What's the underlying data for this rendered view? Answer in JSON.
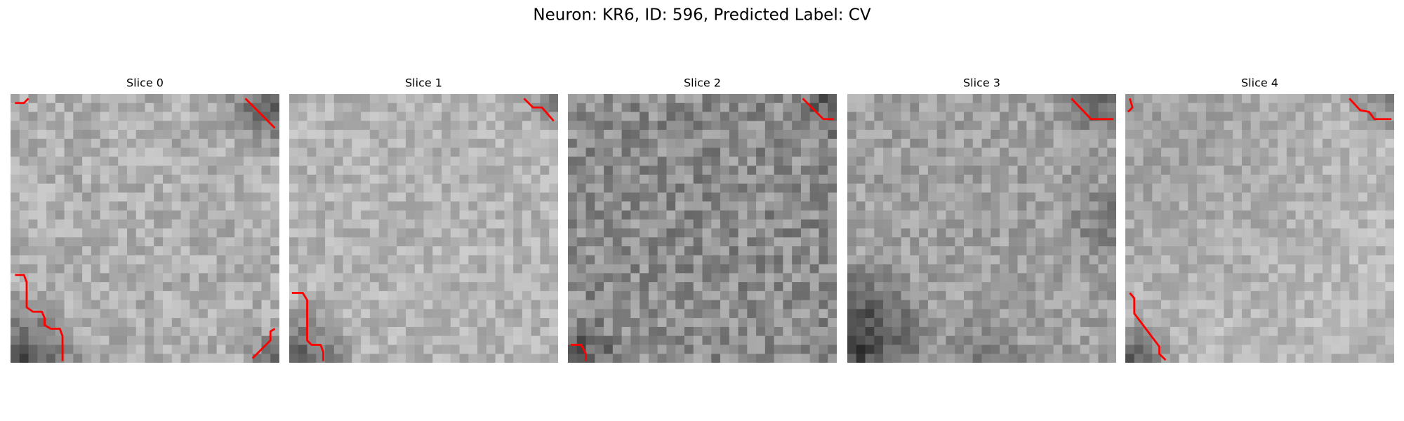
{
  "title": "Neuron: KR6, ID: 596, Predicted Label: CV",
  "panels": [
    {
      "label": "Slice 0"
    },
    {
      "label": "Slice 1"
    },
    {
      "label": "Slice 2"
    },
    {
      "label": "Slice 3"
    },
    {
      "label": "Slice 4"
    }
  ]
}
